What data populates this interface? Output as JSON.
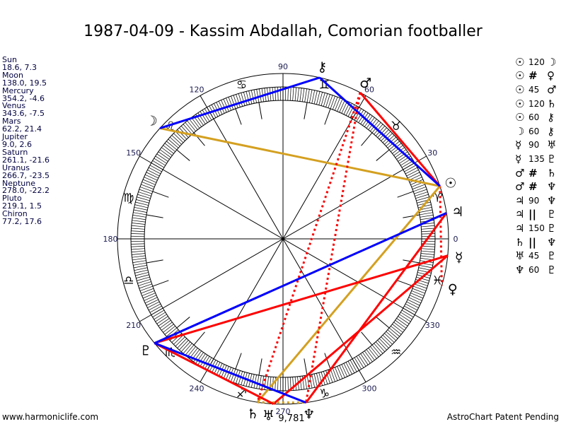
{
  "title": "1987-04-09 - Kassim Abdallah, Comorian footballer",
  "footer": {
    "left": "www.harmoniclife.com",
    "right": "AstroChart Patent Pending"
  },
  "colors": {
    "trine": "#d4a020",
    "square": "#ff0000",
    "sextile": "#0000ff",
    "parallel": "#d4a020",
    "contraparallel": "#ff0000",
    "line": "#000000",
    "degree_label": "#1a1a50"
  },
  "planets": [
    {
      "name": "Sun",
      "glyph": "☉",
      "values": "18.6, 7.3",
      "lon": 18.6
    },
    {
      "name": "Moon",
      "glyph": "☽",
      "values": "138.0, 19.5",
      "lon": 138.0
    },
    {
      "name": "Mercury",
      "glyph": "☿",
      "values": "354.2, -4.6",
      "lon": 354.2
    },
    {
      "name": "Venus",
      "glyph": "♀",
      "values": "343.6, -7.5",
      "lon": 343.6
    },
    {
      "name": "Mars",
      "glyph": "♂",
      "values": "62.2, 21.4",
      "lon": 62.2
    },
    {
      "name": "Jupiter",
      "glyph": "♃",
      "values": "9.0, 2.6",
      "lon": 9.0
    },
    {
      "name": "Saturn",
      "glyph": "♄",
      "values": "261.1, -21.6",
      "lon": 261.1
    },
    {
      "name": "Uranus",
      "glyph": "♅",
      "values": "266.7, -23.5",
      "lon": 266.7
    },
    {
      "name": "Neptune",
      "glyph": "♆",
      "values": "278.0, -22.2",
      "lon": 278.0
    },
    {
      "name": "Pluto",
      "glyph": "♇",
      "values": "219.1, 1.5",
      "lon": 219.1
    },
    {
      "name": "Chiron",
      "glyph": "⚷",
      "values": "77.2, 17.6",
      "lon": 77.2
    }
  ],
  "aspects": [
    {
      "p1": "Sun",
      "label": "120",
      "p2": "Moon",
      "kind": "trine"
    },
    {
      "p1": "Sun",
      "label": "#",
      "p2": "Venus",
      "kind": "contraparallel"
    },
    {
      "p1": "Sun",
      "label": "45",
      "p2": "Mars",
      "kind": "square"
    },
    {
      "p1": "Sun",
      "label": "120",
      "p2": "Saturn",
      "kind": "trine"
    },
    {
      "p1": "Sun",
      "label": "60",
      "p2": "Chiron",
      "kind": "sextile"
    },
    {
      "p1": "Moon",
      "label": "60",
      "p2": "Chiron",
      "kind": "sextile"
    },
    {
      "p1": "Mercury",
      "label": "90",
      "p2": "Uranus",
      "kind": "square"
    },
    {
      "p1": "Mercury",
      "label": "135",
      "p2": "Pluto",
      "kind": "square"
    },
    {
      "p1": "Mars",
      "label": "#",
      "p2": "Saturn",
      "kind": "contraparallel"
    },
    {
      "p1": "Mars",
      "label": "#",
      "p2": "Neptune",
      "kind": "contraparallel"
    },
    {
      "p1": "Jupiter",
      "label": "90",
      "p2": "Neptune",
      "kind": "square"
    },
    {
      "p1": "Jupiter",
      "label": "||",
      "p2": "Pluto",
      "kind": "parallel"
    },
    {
      "p1": "Jupiter",
      "label": "150",
      "p2": "Pluto",
      "kind": "sextile"
    },
    {
      "p1": "Saturn",
      "label": "||",
      "p2": "Neptune",
      "kind": "parallel"
    },
    {
      "p1": "Uranus",
      "label": "45",
      "p2": "Pluto",
      "kind": "square"
    },
    {
      "p1": "Neptune",
      "label": "60",
      "p2": "Pluto",
      "kind": "sextile"
    }
  ],
  "zodiac_signs": [
    "♈",
    "♉",
    "♊",
    "♋",
    "♌",
    "♍",
    "♎",
    "♏",
    "♐",
    "♑",
    "♒",
    "♓"
  ],
  "degree_labels": [
    "0",
    "30",
    "60",
    "90",
    "120",
    "150",
    "180",
    "210",
    "240",
    "270",
    "300",
    "330"
  ],
  "stray_text": "9,781"
}
